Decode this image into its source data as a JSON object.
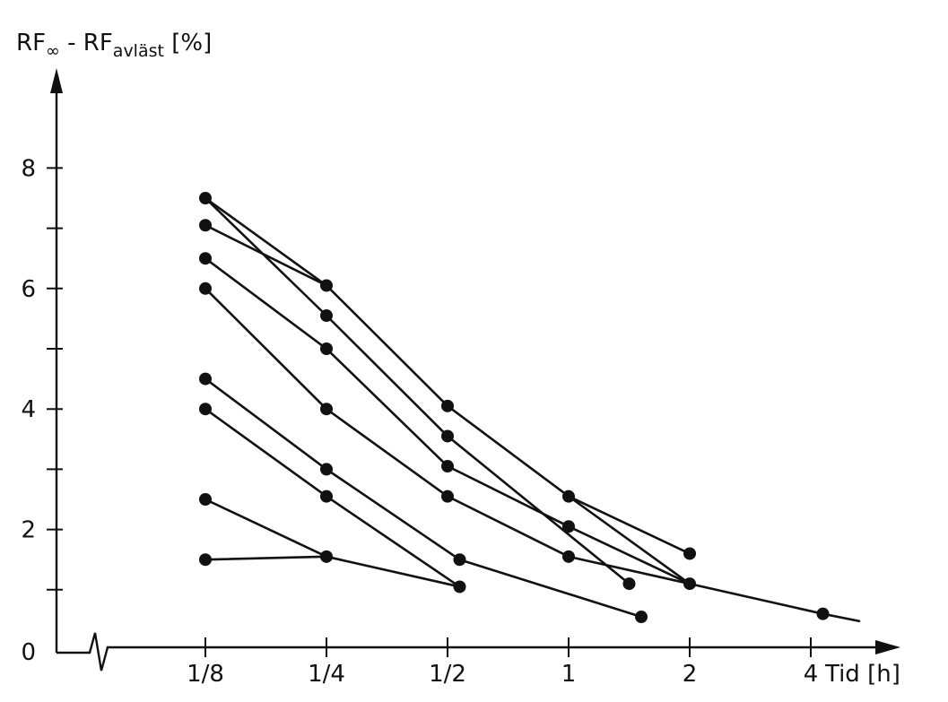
{
  "chart_data": {
    "type": "line",
    "title": "",
    "ylabel_main": "RF",
    "ylabel_sub1": "∞",
    "ylabel_mid": " - RF",
    "ylabel_sub2": "avläst",
    "ylabel_unit": " [%]",
    "xlabel": "Tid [h]",
    "x_ticks": [
      "1/8",
      "1/4",
      "1/2",
      "1",
      "2",
      "4"
    ],
    "y_ticks": [
      "0",
      "2",
      "4",
      "6",
      "8"
    ],
    "ylim": [
      0,
      9.5
    ],
    "grid": false,
    "series": [
      {
        "points": [
          [
            1,
            7.5
          ],
          [
            2,
            5.55
          ],
          [
            3,
            3.55
          ],
          [
            4.5,
            1.1
          ]
        ]
      },
      {
        "points": [
          [
            1,
            7.5
          ],
          [
            2,
            6.05
          ],
          [
            3,
            4.05
          ],
          [
            4,
            2.55
          ],
          [
            5,
            1.6
          ]
        ]
      },
      {
        "points": [
          [
            1,
            7.05
          ],
          [
            2,
            6.05
          ]
        ]
      },
      {
        "points": [
          [
            1,
            6.5
          ],
          [
            2,
            5.0
          ],
          [
            3,
            3.05
          ],
          [
            4,
            2.05
          ],
          [
            5,
            1.1
          ],
          [
            6.1,
            0.6
          ]
        ]
      },
      {
        "points": [
          [
            1,
            6.0
          ],
          [
            2,
            4.0
          ],
          [
            3,
            2.55
          ],
          [
            4,
            1.55
          ],
          [
            5,
            1.1
          ]
        ]
      },
      {
        "points": [
          [
            1,
            4.5
          ],
          [
            2,
            3.0
          ],
          [
            3.1,
            1.5
          ],
          [
            4.6,
            0.55
          ]
        ]
      },
      {
        "points": [
          [
            1,
            4.0
          ],
          [
            2,
            2.55
          ],
          [
            3.1,
            1.05
          ]
        ]
      },
      {
        "points": [
          [
            1,
            2.5
          ],
          [
            2,
            1.55
          ]
        ]
      },
      {
        "points": [
          [
            1,
            1.5
          ],
          [
            2,
            1.55
          ],
          [
            3.1,
            1.05
          ]
        ]
      },
      {
        "points": [
          [
            4,
            2.55
          ],
          [
            5,
            1.1
          ]
        ]
      }
    ]
  }
}
